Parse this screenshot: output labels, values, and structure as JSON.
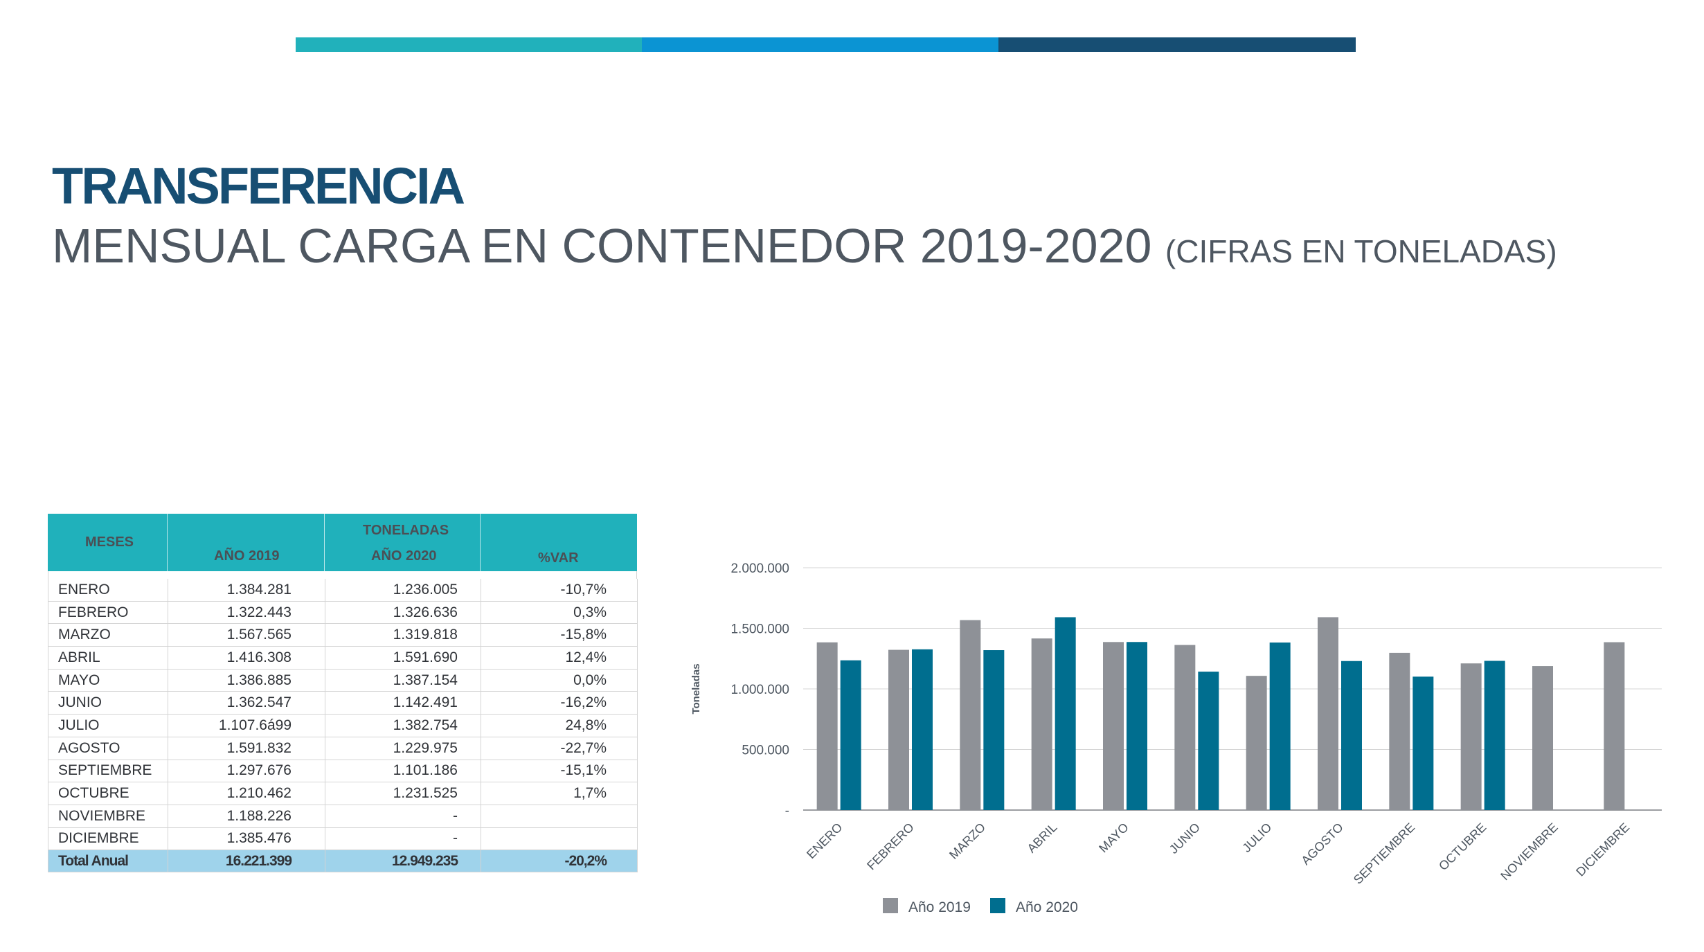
{
  "header": {
    "title_main": "TRANSFERENCIA",
    "title_line": "MENSUAL CARGA EN CONTENEDOR 2019-2020",
    "title_sub": "(CIFRAS EN TONELADAS)"
  },
  "table": {
    "col_meses": "MESES",
    "col_group": "TONELADAS",
    "col_2019": "AÑO 2019",
    "col_2020": "AÑO 2020",
    "col_var": "%VAR",
    "rows": [
      {
        "mes": "ENERO",
        "y2019": "1.384.281",
        "y2020": "1.236.005",
        "var": "-10,7%"
      },
      {
        "mes": "FEBRERO",
        "y2019": "1.322.443",
        "y2020": "1.326.636",
        "var": "0,3%"
      },
      {
        "mes": "MARZO",
        "y2019": "1.567.565",
        "y2020": "1.319.818",
        "var": "-15,8%"
      },
      {
        "mes": "ABRIL",
        "y2019": "1.416.308",
        "y2020": "1.591.690",
        "var": "12,4%"
      },
      {
        "mes": "MAYO",
        "y2019": "1.386.885",
        "y2020": "1.387.154",
        "var": "0,0%"
      },
      {
        "mes": "JUNIO",
        "y2019": "1.362.547",
        "y2020": "1.142.491",
        "var": "-16,2%"
      },
      {
        "mes": "JULIO",
        "y2019": "1.107.6á99",
        "y2020": "1.382.754",
        "var": "24,8%"
      },
      {
        "mes": "AGOSTO",
        "y2019": "1.591.832",
        "y2020": "1.229.975",
        "var": "-22,7%"
      },
      {
        "mes": "SEPTIEMBRE",
        "y2019": "1.297.676",
        "y2020": "1.101.186",
        "var": "-15,1%"
      },
      {
        "mes": "OCTUBRE",
        "y2019": "1.210.462",
        "y2020": "1.231.525",
        "var": "1,7%"
      },
      {
        "mes": "NOVIEMBRE",
        "y2019": "1.188.226",
        "y2020": "-",
        "var": ""
      },
      {
        "mes": "DICIEMBRE",
        "y2019": "1.385.476",
        "y2020": "-",
        "var": ""
      }
    ],
    "total": {
      "mes": "Total Anual",
      "y2019": "16.221.399",
      "y2020": "12.949.235",
      "var": "-20,2%"
    }
  },
  "chart_data": {
    "type": "bar",
    "ylabel": "Toneladas",
    "ylim": [
      0,
      2000000
    ],
    "yticks": [
      0,
      500000,
      1000000,
      1500000,
      2000000
    ],
    "ytick_labels": [
      "-",
      "500.000",
      "1.000.000",
      "1.500.000",
      "2.000.000"
    ],
    "categories": [
      "ENERO",
      "FEBRERO",
      "MARZO",
      "ABRIL",
      "MAYO",
      "JUNIO",
      "JULIO",
      "AGOSTO",
      "SEPTIEMBRE",
      "OCTUBRE",
      "NOVIEMBRE",
      "DICIEMBRE"
    ],
    "series": [
      {
        "name": "Año 2019",
        "color": "#8e9197",
        "values": [
          1384281,
          1322443,
          1567565,
          1416308,
          1386885,
          1362547,
          1107699,
          1591832,
          1297676,
          1210462,
          1188226,
          1385476
        ]
      },
      {
        "name": "Año 2020",
        "color": "#006e8f",
        "values": [
          1236005,
          1326636,
          1319818,
          1591690,
          1387154,
          1142491,
          1382754,
          1229975,
          1101186,
          1231525,
          null,
          null
        ]
      }
    ],
    "grid": true,
    "legend": "bottom-center"
  }
}
